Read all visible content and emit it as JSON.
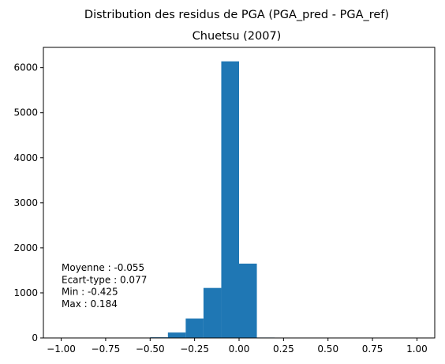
{
  "chart_data": {
    "type": "bar",
    "title": "Distribution des residus de PGA (PGA_pred - PGA_ref)",
    "subtitle": "Chuetsu (2007)",
    "xlabel": "",
    "ylabel": "",
    "xlim": [
      -1.1,
      1.1
    ],
    "ylim": [
      0,
      6450
    ],
    "bar_color": "#1f77b4",
    "bins": [
      {
        "start": -0.5,
        "end": -0.4,
        "value": 15
      },
      {
        "start": -0.4,
        "end": -0.3,
        "value": 120
      },
      {
        "start": -0.3,
        "end": -0.2,
        "value": 430
      },
      {
        "start": -0.2,
        "end": -0.1,
        "value": 1110
      },
      {
        "start": -0.1,
        "end": 0.0,
        "value": 6140
      },
      {
        "start": 0.0,
        "end": 0.1,
        "value": 1650
      },
      {
        "start": 0.1,
        "end": 0.2,
        "value": 10
      }
    ],
    "x_ticks": [
      {
        "value": -1.0,
        "label": "−1.00"
      },
      {
        "value": -0.75,
        "label": "−0.75"
      },
      {
        "value": -0.5,
        "label": "−0.50"
      },
      {
        "value": -0.25,
        "label": "−0.25"
      },
      {
        "value": 0.0,
        "label": "0.00"
      },
      {
        "value": 0.25,
        "label": "0.25"
      },
      {
        "value": 0.5,
        "label": "0.50"
      },
      {
        "value": 0.75,
        "label": "0.75"
      },
      {
        "value": 1.0,
        "label": "1.00"
      }
    ],
    "y_ticks": [
      {
        "value": 0,
        "label": "0"
      },
      {
        "value": 1000,
        "label": "1000"
      },
      {
        "value": 2000,
        "label": "2000"
      },
      {
        "value": 3000,
        "label": "3000"
      },
      {
        "value": 4000,
        "label": "4000"
      },
      {
        "value": 5000,
        "label": "5000"
      },
      {
        "value": 6000,
        "label": "6000"
      }
    ],
    "annotations": [
      "Moyenne : -0.055",
      "Ecart-type : 0.077",
      "Min : -0.425",
      "Max : 0.184"
    ],
    "grid": false,
    "legend": "none"
  }
}
